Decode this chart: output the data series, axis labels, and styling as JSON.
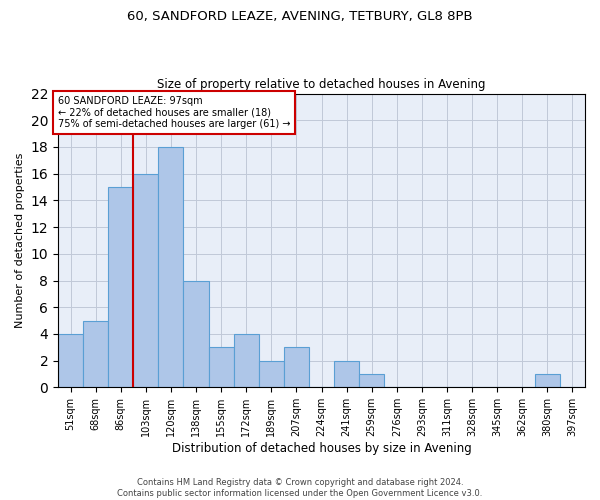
{
  "title_line1": "60, SANDFORD LEAZE, AVENING, TETBURY, GL8 8PB",
  "title_line2": "Size of property relative to detached houses in Avening",
  "xlabel": "Distribution of detached houses by size in Avening",
  "ylabel": "Number of detached properties",
  "bin_labels": [
    "51sqm",
    "68sqm",
    "86sqm",
    "103sqm",
    "120sqm",
    "138sqm",
    "155sqm",
    "172sqm",
    "189sqm",
    "207sqm",
    "224sqm",
    "241sqm",
    "259sqm",
    "276sqm",
    "293sqm",
    "311sqm",
    "328sqm",
    "345sqm",
    "362sqm",
    "380sqm",
    "397sqm"
  ],
  "values": [
    4,
    5,
    15,
    16,
    18,
    8,
    3,
    4,
    2,
    3,
    0,
    2,
    1,
    0,
    0,
    0,
    0,
    0,
    0,
    1,
    0
  ],
  "bar_color": "#aec6e8",
  "bar_edgecolor": "#5a9fd4",
  "bar_linewidth": 0.8,
  "vline_x": 2.5,
  "vline_color": "#cc0000",
  "annotation_text": "60 SANDFORD LEAZE: 97sqm\n← 22% of detached houses are smaller (18)\n75% of semi-detached houses are larger (61) →",
  "annotation_box_color": "#ffffff",
  "annotation_box_edgecolor": "#cc0000",
  "ylim": [
    0,
    22
  ],
  "yticks": [
    0,
    2,
    4,
    6,
    8,
    10,
    12,
    14,
    16,
    18,
    20,
    22
  ],
  "background_color": "#e8eef8",
  "grid_color": "#c0c8d8",
  "footnote": "Contains HM Land Registry data © Crown copyright and database right 2024.\nContains public sector information licensed under the Open Government Licence v3.0."
}
